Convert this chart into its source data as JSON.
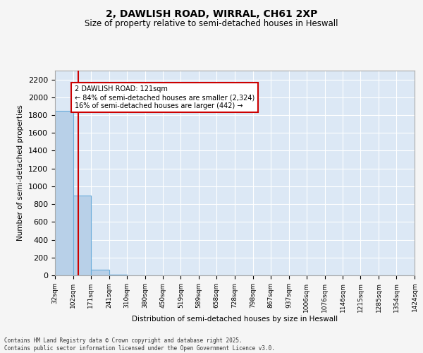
{
  "title_line1": "2, DAWLISH ROAD, WIRRAL, CH61 2XP",
  "title_line2": "Size of property relative to semi-detached houses in Heswall",
  "xlabel": "Distribution of semi-detached houses by size in Heswall",
  "ylabel": "Number of semi-detached properties",
  "bar_edges": [
    32,
    102,
    171,
    241,
    310,
    380,
    450,
    519,
    589,
    658,
    728,
    798,
    867,
    937,
    1006,
    1076,
    1146,
    1215,
    1285,
    1354,
    1424
  ],
  "bar_heights": [
    1850,
    900,
    60,
    5,
    2,
    1,
    1,
    0,
    0,
    0,
    0,
    0,
    0,
    0,
    0,
    0,
    0,
    0,
    0,
    0
  ],
  "bar_color": "#b8d0e8",
  "bar_edgecolor": "#6aacda",
  "ylim": [
    0,
    2300
  ],
  "yticks": [
    0,
    200,
    400,
    600,
    800,
    1000,
    1200,
    1400,
    1600,
    1800,
    2000,
    2200
  ],
  "property_size": 121,
  "red_line_color": "#cc0000",
  "annotation_line1": "2 DAWLISH ROAD: 121sqm",
  "annotation_line2": "← 84% of semi-detached houses are smaller (2,324)",
  "annotation_line3": "16% of semi-detached houses are larger (442) →",
  "annotation_box_color": "#cc0000",
  "fig_background_color": "#f5f5f5",
  "plot_background_color": "#dce8f5",
  "grid_color": "#ffffff",
  "footer_line1": "Contains HM Land Registry data © Crown copyright and database right 2025.",
  "footer_line2": "Contains public sector information licensed under the Open Government Licence v3.0.",
  "tick_labels": [
    "32sqm",
    "102sqm",
    "171sqm",
    "241sqm",
    "310sqm",
    "380sqm",
    "450sqm",
    "519sqm",
    "589sqm",
    "658sqm",
    "728sqm",
    "798sqm",
    "867sqm",
    "937sqm",
    "1006sqm",
    "1076sqm",
    "1146sqm",
    "1215sqm",
    "1285sqm",
    "1354sqm",
    "1424sqm"
  ]
}
